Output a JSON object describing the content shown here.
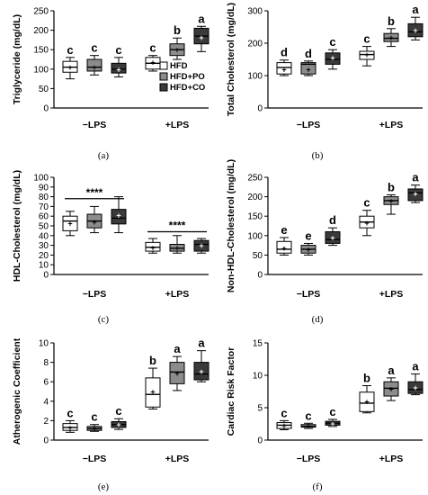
{
  "colors": {
    "HFD": "#ffffff",
    "HFD+PO": "#8c8c8c",
    "HFD+CO": "#3a3a3a",
    "line": "#000000"
  },
  "groups": [
    "−LPS",
    "+LPS"
  ],
  "chart_data": [
    {
      "type": "box",
      "panel_label": "(a)",
      "ylabel": "Triglyceride (mg/dL)",
      "ylim": [
        0,
        250
      ],
      "yticks": [
        0,
        50,
        100,
        150,
        200,
        250
      ],
      "legend": {
        "entries": [
          "HFD",
          "HFD+PO",
          "HFD+CO"
        ],
        "placement": "right"
      },
      "boxes": [
        {
          "group": "−LPS",
          "series": "HFD",
          "min": 75,
          "q1": 92,
          "median": 105,
          "q3": 120,
          "max": 130,
          "mean": 105,
          "sig": "c"
        },
        {
          "group": "−LPS",
          "series": "HFD+PO",
          "min": 85,
          "q1": 95,
          "median": 105,
          "q3": 125,
          "max": 135,
          "mean": 105,
          "sig": "c"
        },
        {
          "group": "−LPS",
          "series": "HFD+CO",
          "min": 80,
          "q1": 90,
          "median": 100,
          "q3": 115,
          "max": 130,
          "mean": 100,
          "sig": "c"
        },
        {
          "group": "+LPS",
          "series": "HFD",
          "min": 95,
          "q1": 100,
          "median": 115,
          "q3": 130,
          "max": 135,
          "mean": 118,
          "sig": "c"
        },
        {
          "group": "+LPS",
          "series": "HFD+PO",
          "min": 125,
          "q1": 135,
          "median": 150,
          "q3": 165,
          "max": 180,
          "mean": 150,
          "sig": "b"
        },
        {
          "group": "+LPS",
          "series": "HFD+CO",
          "min": 145,
          "q1": 165,
          "median": 185,
          "q3": 205,
          "max": 210,
          "mean": 182,
          "sig": "a"
        }
      ]
    },
    {
      "type": "box",
      "panel_label": "(b)",
      "ylabel": "Total Cholesterol (mg/dL)",
      "ylim": [
        0,
        300
      ],
      "yticks": [
        0,
        100,
        200,
        300
      ],
      "boxes": [
        {
          "group": "−LPS",
          "series": "HFD",
          "min": 100,
          "q1": 105,
          "median": 125,
          "q3": 140,
          "max": 148,
          "mean": 120,
          "sig": "d"
        },
        {
          "group": "−LPS",
          "series": "HFD+PO",
          "min": 100,
          "q1": 105,
          "median": 135,
          "q3": 140,
          "max": 145,
          "mean": 120,
          "sig": "d"
        },
        {
          "group": "−LPS",
          "series": "HFD+CO",
          "min": 120,
          "q1": 135,
          "median": 150,
          "q3": 170,
          "max": 180,
          "mean": 155,
          "sig": "c"
        },
        {
          "group": "+LPS",
          "series": "HFD",
          "min": 130,
          "q1": 150,
          "median": 165,
          "q3": 175,
          "max": 190,
          "mean": 165,
          "sig": "c"
        },
        {
          "group": "+LPS",
          "series": "HFD+PO",
          "min": 190,
          "q1": 205,
          "median": 215,
          "q3": 230,
          "max": 245,
          "mean": 218,
          "sig": "b"
        },
        {
          "group": "+LPS",
          "series": "HFD+CO",
          "min": 210,
          "q1": 220,
          "median": 235,
          "q3": 260,
          "max": 280,
          "mean": 240,
          "sig": "a"
        }
      ]
    },
    {
      "type": "box",
      "panel_label": "(c)",
      "ylabel": "HDL-Cholesterol (mg/dL)",
      "ylim": [
        0,
        100
      ],
      "yticks": [
        0,
        10,
        20,
        30,
        40,
        50,
        60,
        70,
        80,
        90,
        100
      ],
      "annotations": [
        {
          "text": "****",
          "y": 78,
          "from": 0,
          "to": 2
        },
        {
          "text": "****",
          "y": 44,
          "from": 3,
          "to": 5
        }
      ],
      "boxes": [
        {
          "group": "−LPS",
          "series": "HFD",
          "min": 40,
          "q1": 45,
          "median": 55,
          "q3": 60,
          "max": 65,
          "mean": 53,
          "sig": ""
        },
        {
          "group": "−LPS",
          "series": "HFD+PO",
          "min": 43,
          "q1": 48,
          "median": 55,
          "q3": 62,
          "max": 70,
          "mean": 54,
          "sig": ""
        },
        {
          "group": "−LPS",
          "series": "HFD+CO",
          "min": 43,
          "q1": 52,
          "median": 58,
          "q3": 67,
          "max": 80,
          "mean": 61,
          "sig": ""
        },
        {
          "group": "+LPS",
          "series": "HFD",
          "min": 22,
          "q1": 24,
          "median": 28,
          "q3": 33,
          "max": 37,
          "mean": 28,
          "sig": ""
        },
        {
          "group": "+LPS",
          "series": "HFD+PO",
          "min": 22,
          "q1": 24,
          "median": 27,
          "q3": 31,
          "max": 40,
          "mean": 28,
          "sig": ""
        },
        {
          "group": "+LPS",
          "series": "HFD+CO",
          "min": 22,
          "q1": 24,
          "median": 31,
          "q3": 35,
          "max": 37,
          "mean": 30,
          "sig": ""
        }
      ]
    },
    {
      "type": "box",
      "panel_label": "(d)",
      "ylabel": "Non-HDL-Cholesterol (mg/dL)",
      "ylim": [
        0,
        250
      ],
      "yticks": [
        0,
        50,
        100,
        150,
        200,
        250
      ],
      "boxes": [
        {
          "group": "−LPS",
          "series": "HFD",
          "min": 50,
          "q1": 55,
          "median": 65,
          "q3": 85,
          "max": 95,
          "mean": 68,
          "sig": "e"
        },
        {
          "group": "−LPS",
          "series": "HFD+PO",
          "min": 50,
          "q1": 55,
          "median": 65,
          "q3": 75,
          "max": 80,
          "mean": 65,
          "sig": "e"
        },
        {
          "group": "−LPS",
          "series": "HFD+CO",
          "min": 75,
          "q1": 80,
          "median": 90,
          "q3": 110,
          "max": 120,
          "mean": 95,
          "sig": "d"
        },
        {
          "group": "+LPS",
          "series": "HFD",
          "min": 100,
          "q1": 120,
          "median": 135,
          "q3": 150,
          "max": 165,
          "mean": 133,
          "sig": "c"
        },
        {
          "group": "+LPS",
          "series": "HFD+PO",
          "min": 155,
          "q1": 180,
          "median": 190,
          "q3": 200,
          "max": 205,
          "mean": 190,
          "sig": "b"
        },
        {
          "group": "+LPS",
          "series": "HFD+CO",
          "min": 185,
          "q1": 190,
          "median": 210,
          "q3": 220,
          "max": 230,
          "mean": 208,
          "sig": "a"
        }
      ]
    },
    {
      "type": "box",
      "panel_label": "(e)",
      "ylabel": "Atherogenic Coefficient",
      "ylim": [
        0,
        10
      ],
      "yticks": [
        0,
        2,
        4,
        6,
        8,
        10
      ],
      "boxes": [
        {
          "group": "−LPS",
          "series": "HFD",
          "min": 0.8,
          "q1": 1.0,
          "median": 1.3,
          "q3": 1.7,
          "max": 2.0,
          "mean": 1.3,
          "sig": "c"
        },
        {
          "group": "−LPS",
          "series": "HFD+PO",
          "min": 0.9,
          "q1": 1.0,
          "median": 1.2,
          "q3": 1.4,
          "max": 1.6,
          "mean": 1.2,
          "sig": "c"
        },
        {
          "group": "−LPS",
          "series": "HFD+CO",
          "min": 1.1,
          "q1": 1.3,
          "median": 1.6,
          "q3": 1.9,
          "max": 2.2,
          "mean": 1.6,
          "sig": "c"
        },
        {
          "group": "+LPS",
          "series": "HFD",
          "min": 3.2,
          "q1": 3.4,
          "median": 4.7,
          "q3": 6.4,
          "max": 7.4,
          "mean": 5.0,
          "sig": "b"
        },
        {
          "group": "+LPS",
          "series": "HFD+PO",
          "min": 5.1,
          "q1": 5.8,
          "median": 7.0,
          "q3": 8.0,
          "max": 8.6,
          "mean": 6.9,
          "sig": "a"
        },
        {
          "group": "+LPS",
          "series": "HFD+CO",
          "min": 6.0,
          "q1": 6.2,
          "median": 6.8,
          "q3": 8.0,
          "max": 9.2,
          "mean": 7.1,
          "sig": "a"
        }
      ]
    },
    {
      "type": "box",
      "panel_label": "(f)",
      "ylabel": "Cardiac Risk Factor",
      "ylim": [
        0,
        15
      ],
      "yticks": [
        0,
        5,
        10,
        15
      ],
      "boxes": [
        {
          "group": "−LPS",
          "series": "HFD",
          "min": 1.6,
          "q1": 1.8,
          "median": 2.3,
          "q3": 2.7,
          "max": 3.0,
          "mean": 2.3,
          "sig": "c"
        },
        {
          "group": "−LPS",
          "series": "HFD+PO",
          "min": 1.8,
          "q1": 2.0,
          "median": 2.1,
          "q3": 2.4,
          "max": 2.6,
          "mean": 2.2,
          "sig": "c"
        },
        {
          "group": "−LPS",
          "series": "HFD+CO",
          "min": 2.1,
          "q1": 2.3,
          "median": 2.6,
          "q3": 2.9,
          "max": 3.2,
          "mean": 2.6,
          "sig": "c"
        },
        {
          "group": "+LPS",
          "series": "HFD",
          "min": 4.2,
          "q1": 4.4,
          "median": 5.7,
          "q3": 7.4,
          "max": 8.4,
          "mean": 6.0,
          "sig": "b"
        },
        {
          "group": "+LPS",
          "series": "HFD+PO",
          "min": 6.1,
          "q1": 6.8,
          "median": 8.0,
          "q3": 9.0,
          "max": 9.6,
          "mean": 7.9,
          "sig": "a"
        },
        {
          "group": "+LPS",
          "series": "HFD+CO",
          "min": 7.0,
          "q1": 7.2,
          "median": 7.8,
          "q3": 9.0,
          "max": 10.2,
          "mean": 8.1,
          "sig": "a"
        }
      ]
    }
  ]
}
